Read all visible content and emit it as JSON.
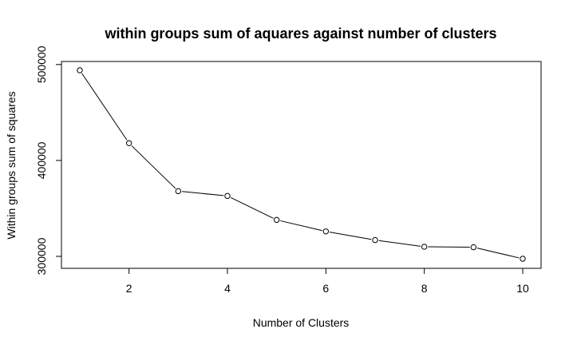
{
  "chart_data": {
    "type": "line",
    "title": "within groups sum of aquares against number of clusters",
    "xlabel": "Number of Clusters",
    "ylabel": "Within groups sum of squares",
    "x": [
      1,
      2,
      3,
      4,
      5,
      6,
      7,
      8,
      9,
      10
    ],
    "series": [
      {
        "values": [
          494000,
          418000,
          368000,
          363000,
          338000,
          326000,
          317000,
          310000,
          309500,
          297500
        ],
        "color": "#000000",
        "marker": "open-circle"
      }
    ],
    "xlim": [
      1,
      10
    ],
    "ylim": [
      297500,
      494000
    ],
    "xticks": [
      2,
      4,
      6,
      8,
      10
    ],
    "yticks": [
      300000,
      400000,
      500000
    ],
    "xtick_labels": [
      "2",
      "4",
      "6",
      "8",
      "10"
    ],
    "ytick_labels": [
      "300000",
      "400000",
      "500000"
    ],
    "grid": false,
    "legend": "none"
  }
}
